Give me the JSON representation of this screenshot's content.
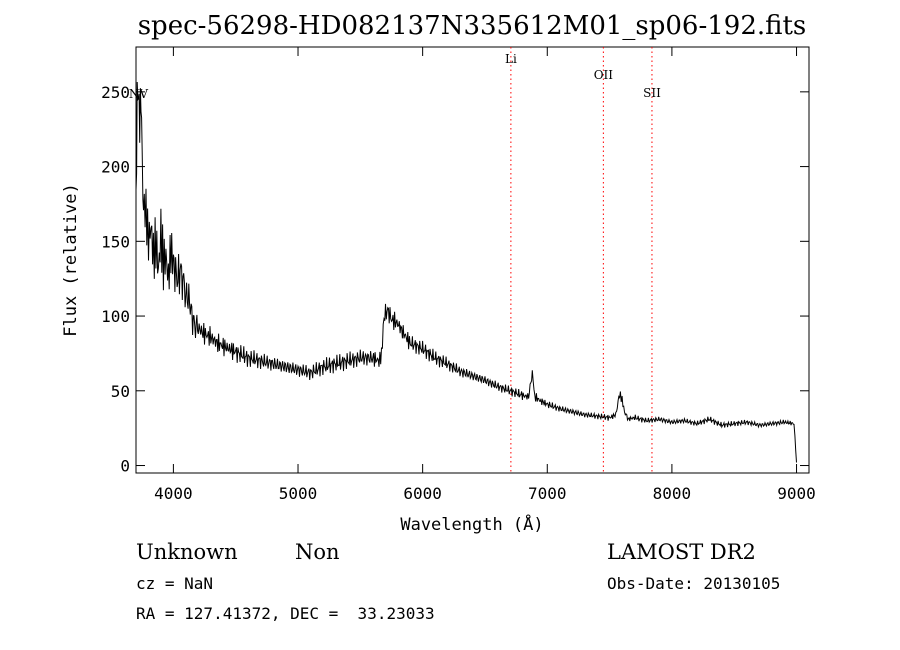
{
  "chart_data": {
    "type": "line",
    "title": "spec-56298-HD082137N335612M01_sp06-192.fits",
    "xlabel": "Wavelength (Å)",
    "ylabel": "Flux (relative)",
    "xlim": [
      3700,
      9100
    ],
    "ylim": [
      -5,
      280
    ],
    "xticks": [
      4000,
      5000,
      6000,
      7000,
      8000,
      9000
    ],
    "yticks": [
      0,
      50,
      100,
      150,
      200,
      250
    ],
    "grid": false,
    "line_color": "#000000",
    "marker_color": "#ff0000",
    "lines": [
      {
        "label": "NV",
        "x": 3720
      },
      {
        "label": "Li",
        "x": 6708
      },
      {
        "label": "OII",
        "x": 7450
      },
      {
        "label": "SII",
        "x": 7840
      }
    ],
    "series": [
      {
        "x": [
          3700,
          3710,
          3720,
          3730,
          3740,
          3750,
          3760,
          3780,
          3800,
          3820,
          3840,
          3860,
          3880,
          3900,
          3920,
          3940,
          3960,
          3980,
          4000,
          4030,
          4060,
          4100,
          4130,
          4160,
          4200,
          4250,
          4300,
          4350,
          4400,
          4450,
          4500,
          4600,
          4700,
          4800,
          4900,
          5000,
          5100,
          5200,
          5300,
          5400,
          5500,
          5600,
          5650,
          5670,
          5690,
          5720,
          5750,
          5800,
          5850,
          5900,
          6000,
          6100,
          6200,
          6300,
          6400,
          6500,
          6600,
          6700,
          6800,
          6850,
          6880,
          6900,
          6950,
          7000,
          7100,
          7200,
          7300,
          7400,
          7500,
          7550,
          7580,
          7600,
          7620,
          7650,
          7700,
          7800,
          7900,
          8000,
          8100,
          8200,
          8300,
          8400,
          8500,
          8600,
          8700,
          8800,
          8900,
          8980,
          9000
        ],
        "y": [
          190,
          255,
          235,
          210,
          245,
          225,
          175,
          170,
          150,
          160,
          140,
          150,
          130,
          155,
          135,
          140,
          125,
          145,
          135,
          125,
          130,
          115,
          110,
          95,
          92,
          88,
          86,
          82,
          80,
          78,
          76,
          72,
          70,
          68,
          66,
          64,
          62,
          66,
          68,
          70,
          72,
          72,
          70,
          74,
          100,
          104,
          98,
          95,
          88,
          82,
          78,
          72,
          68,
          63,
          60,
          57,
          53,
          50,
          47,
          46,
          62,
          46,
          43,
          41,
          38,
          36,
          34,
          33,
          32,
          34,
          48,
          44,
          36,
          31,
          32,
          30,
          31,
          29,
          30,
          28,
          31,
          27,
          28,
          29,
          27,
          28,
          29,
          28,
          2
        ]
      }
    ]
  },
  "info": {
    "object_class": "Unknown",
    "subclass": "Non",
    "survey": "LAMOST DR2",
    "redshift": "cz = NaN",
    "obs_date": "Obs-Date: 20130105",
    "coords": "RA = 127.41372, DEC =  33.23033"
  }
}
